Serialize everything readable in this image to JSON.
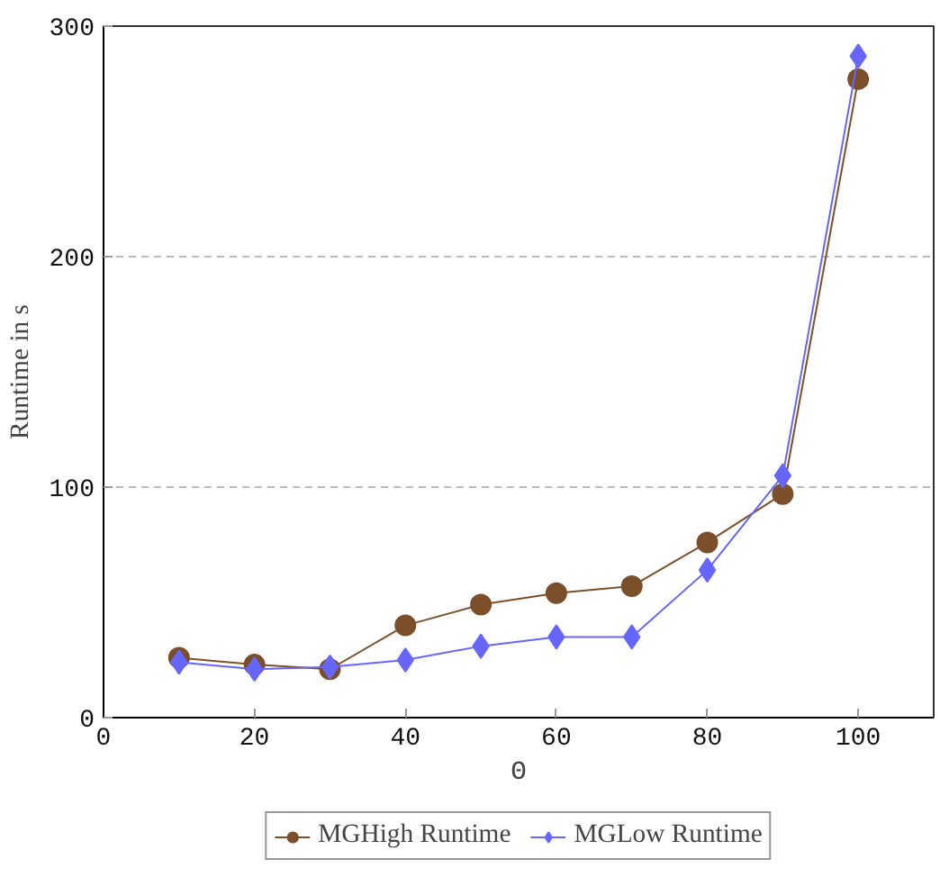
{
  "chart_data": {
    "type": "line",
    "xlabel": "Θ",
    "ylabel": "Runtime in s",
    "x": [
      10,
      20,
      30,
      40,
      50,
      60,
      70,
      80,
      90,
      100
    ],
    "series": [
      {
        "name": "MGHigh Runtime",
        "color": "#7b4f2a",
        "marker": "circle",
        "values": [
          26,
          23,
          21,
          40,
          49,
          54,
          57,
          76,
          97,
          277
        ]
      },
      {
        "name": "MGLow Runtime",
        "color": "#6666ff",
        "marker": "diamond",
        "values": [
          24,
          21,
          22,
          25,
          31,
          35,
          35,
          64,
          105,
          287
        ]
      }
    ],
    "xlim": [
      0,
      110
    ],
    "ylim": [
      0,
      300
    ],
    "xticks": [
      0,
      20,
      40,
      60,
      80,
      100
    ],
    "yticks": [
      0,
      100,
      200,
      300
    ],
    "grid": "y",
    "legend": "bottom",
    "line_style": "solid"
  }
}
